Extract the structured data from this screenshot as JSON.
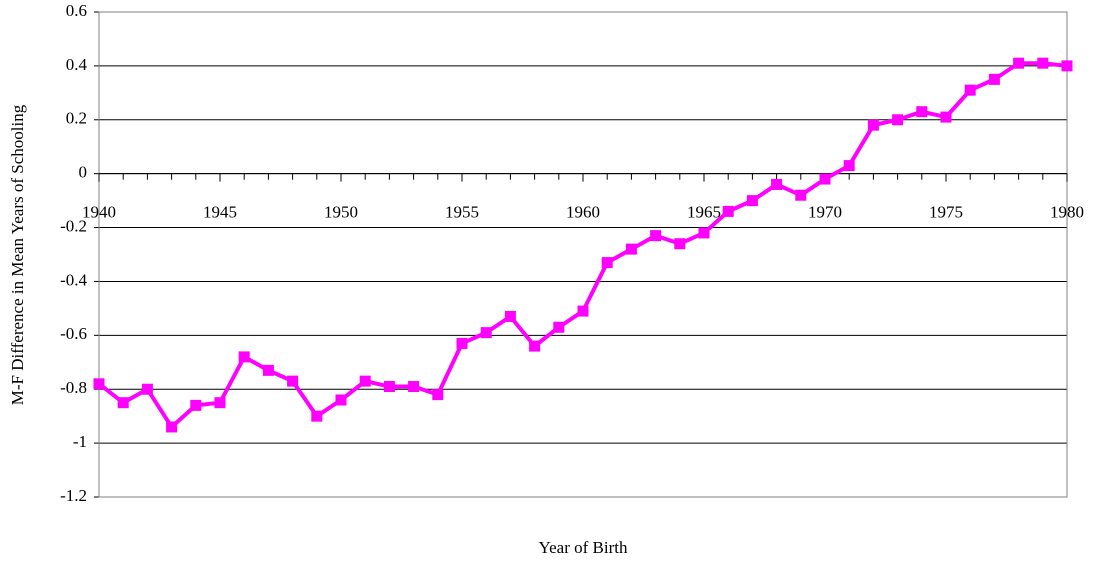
{
  "chart_data": {
    "type": "line",
    "x_label": "Year of Birth",
    "y_label": "M-F Difference in Mean Years of Schooling",
    "x": [
      1940,
      1941,
      1942,
      1943,
      1944,
      1945,
      1946,
      1947,
      1948,
      1949,
      1950,
      1951,
      1952,
      1953,
      1954,
      1955,
      1956,
      1957,
      1958,
      1959,
      1960,
      1961,
      1962,
      1963,
      1964,
      1965,
      1966,
      1967,
      1968,
      1969,
      1970,
      1971,
      1972,
      1973,
      1974,
      1975,
      1976,
      1977,
      1978,
      1979,
      1980
    ],
    "series": [
      {
        "color": "#ff00ff",
        "values": [
          -0.78,
          -0.85,
          -0.8,
          -0.94,
          -0.86,
          -0.85,
          -0.68,
          -0.73,
          -0.77,
          -0.9,
          -0.84,
          -0.77,
          -0.79,
          -0.79,
          -0.82,
          -0.63,
          -0.59,
          -0.53,
          -0.64,
          -0.57,
          -0.51,
          -0.33,
          -0.28,
          -0.23,
          -0.26,
          -0.22,
          -0.14,
          -0.1,
          -0.04,
          -0.08,
          -0.02,
          0.03,
          0.18,
          0.2,
          0.23,
          0.21,
          0.31,
          0.35,
          0.41,
          0.41,
          0.4
        ]
      }
    ],
    "xlim": [
      1940,
      1980
    ],
    "xticks": [
      1940,
      1945,
      1950,
      1955,
      1960,
      1965,
      1970,
      1975,
      1980
    ],
    "ylim": [
      -1.2,
      0.6
    ],
    "yticks": [
      0.6,
      0.4,
      0.2,
      0,
      -0.2,
      -0.4,
      -0.6,
      -0.8,
      -1,
      -1.2
    ],
    "grid": true
  }
}
